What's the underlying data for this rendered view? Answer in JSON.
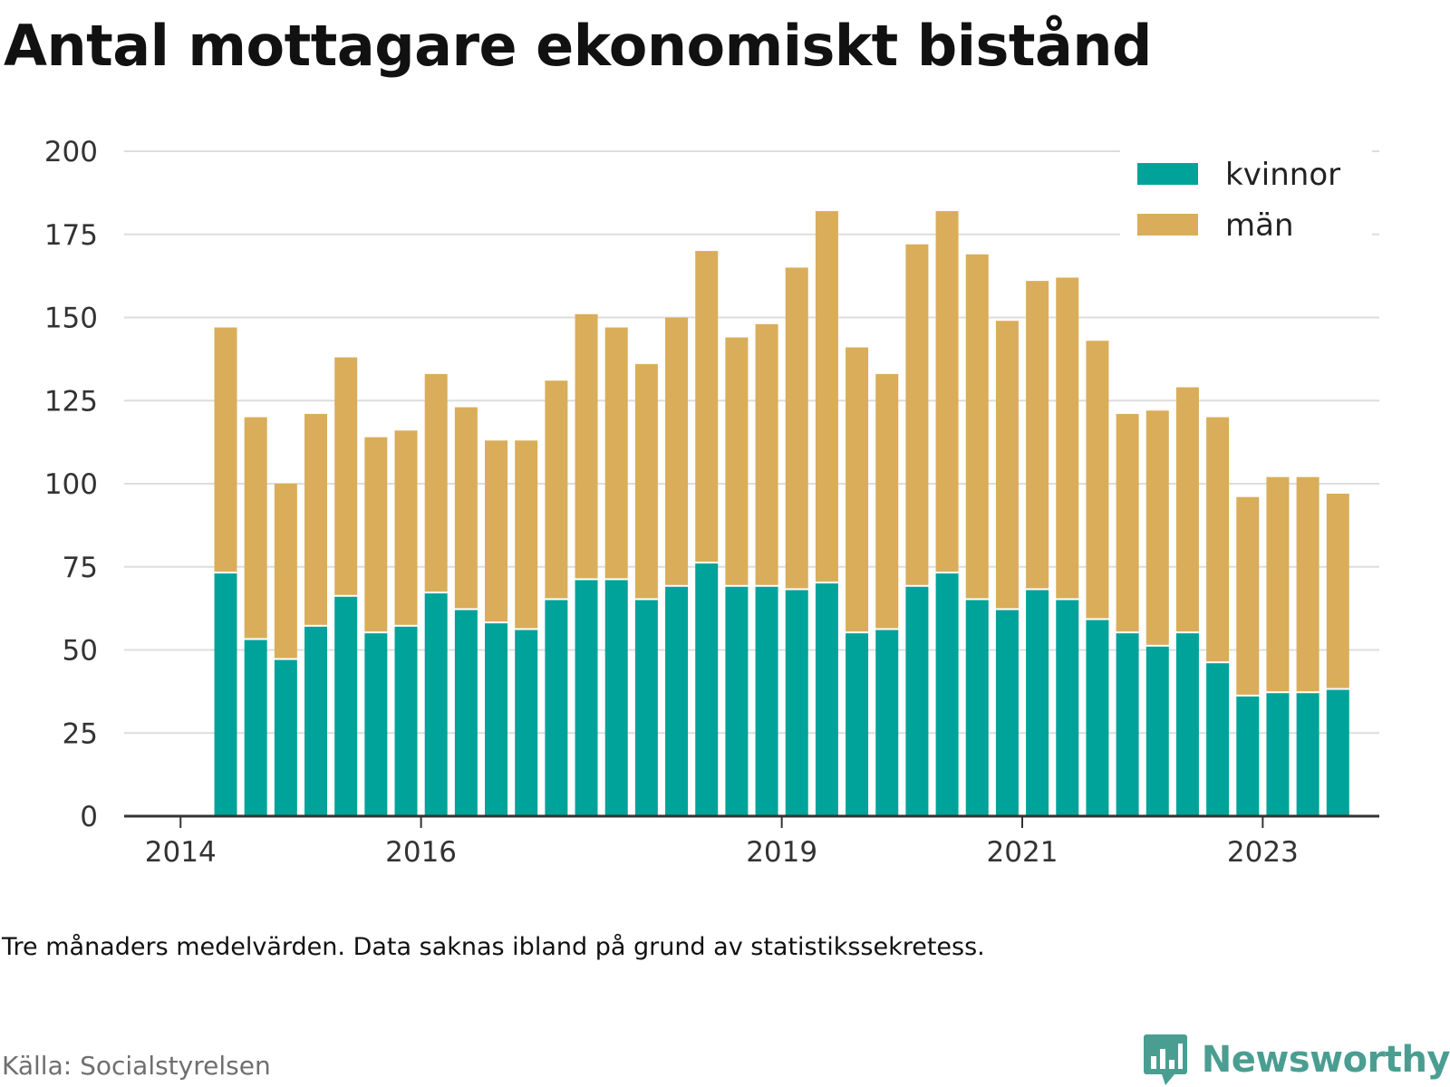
{
  "title": "Antal mottagare ekonomiskt bistånd",
  "note": "Tre månaders medelvärden. Data saknas ibland på grund av statistikssekretess.",
  "source": "Källa: Socialstyrelsen",
  "brand": {
    "name": "Newsworthy",
    "logo_icon": "newsworthy-logo-icon",
    "color": "#4a9e91"
  },
  "colors": {
    "kvinnor": "#00a39a",
    "man": "#d9ad5a",
    "grid": "#dddddd",
    "axis": "#333333"
  },
  "chart_data": {
    "type": "bar",
    "stacked": true,
    "title": "Antal mottagare ekonomiskt bistånd",
    "xlabel": "",
    "ylabel": "",
    "ylim": [
      0,
      200
    ],
    "yticks": [
      "0",
      "25",
      "50",
      "75",
      "100",
      "125",
      "150",
      "175",
      "200"
    ],
    "xticks": [
      {
        "label": "2014",
        "year": 2014
      },
      {
        "label": "2016",
        "year": 2016
      },
      {
        "label": "2019",
        "year": 2019
      },
      {
        "label": "2021",
        "year": 2021
      },
      {
        "label": "2023",
        "year": 2023
      }
    ],
    "grid": true,
    "legend_position": "top-right",
    "x": [
      "2014 Q2",
      "2014 Q3",
      "2014 Q4",
      "2015 Q1",
      "2015 Q2",
      "2015 Q3",
      "2015 Q4",
      "2016 Q1",
      "2016 Q2",
      "2016 Q3",
      "2016 Q4",
      "2017 Q1",
      "2017 Q2",
      "2017 Q3",
      "2017 Q4",
      "2018 Q1",
      "2018 Q2",
      "2018 Q3",
      "2018 Q4",
      "2019 Q1",
      "2019 Q2",
      "2019 Q3",
      "2019 Q4",
      "2020 Q1",
      "2020 Q2",
      "2020 Q3",
      "2020 Q4",
      "2021 Q1",
      "2021 Q2",
      "2021 Q3",
      "2021 Q4",
      "2022 Q1",
      "2022 Q2",
      "2022 Q3",
      "2022 Q4",
      "2023 Q1",
      "2023 Q2",
      "2023 Q3",
      "2023 Q4"
    ],
    "series": [
      {
        "name": "kvinnor",
        "key": "kvinnor",
        "values": [
          73,
          53,
          47,
          57,
          66,
          55,
          57,
          67,
          62,
          58,
          56,
          65,
          71,
          71,
          65,
          69,
          76,
          69,
          69,
          68,
          70,
          55,
          56,
          69,
          73,
          65,
          62,
          68,
          65,
          59,
          55,
          51,
          55,
          46,
          36,
          37,
          37,
          38,
          null
        ]
      },
      {
        "name": "män",
        "key": "man",
        "values": [
          74,
          67,
          53,
          64,
          72,
          59,
          59,
          66,
          61,
          55,
          57,
          66,
          80,
          76,
          71,
          81,
          94,
          75,
          79,
          97,
          112,
          86,
          77,
          103,
          109,
          104,
          87,
          93,
          97,
          84,
          66,
          71,
          74,
          74,
          60,
          65,
          65,
          59,
          null
        ]
      }
    ]
  }
}
